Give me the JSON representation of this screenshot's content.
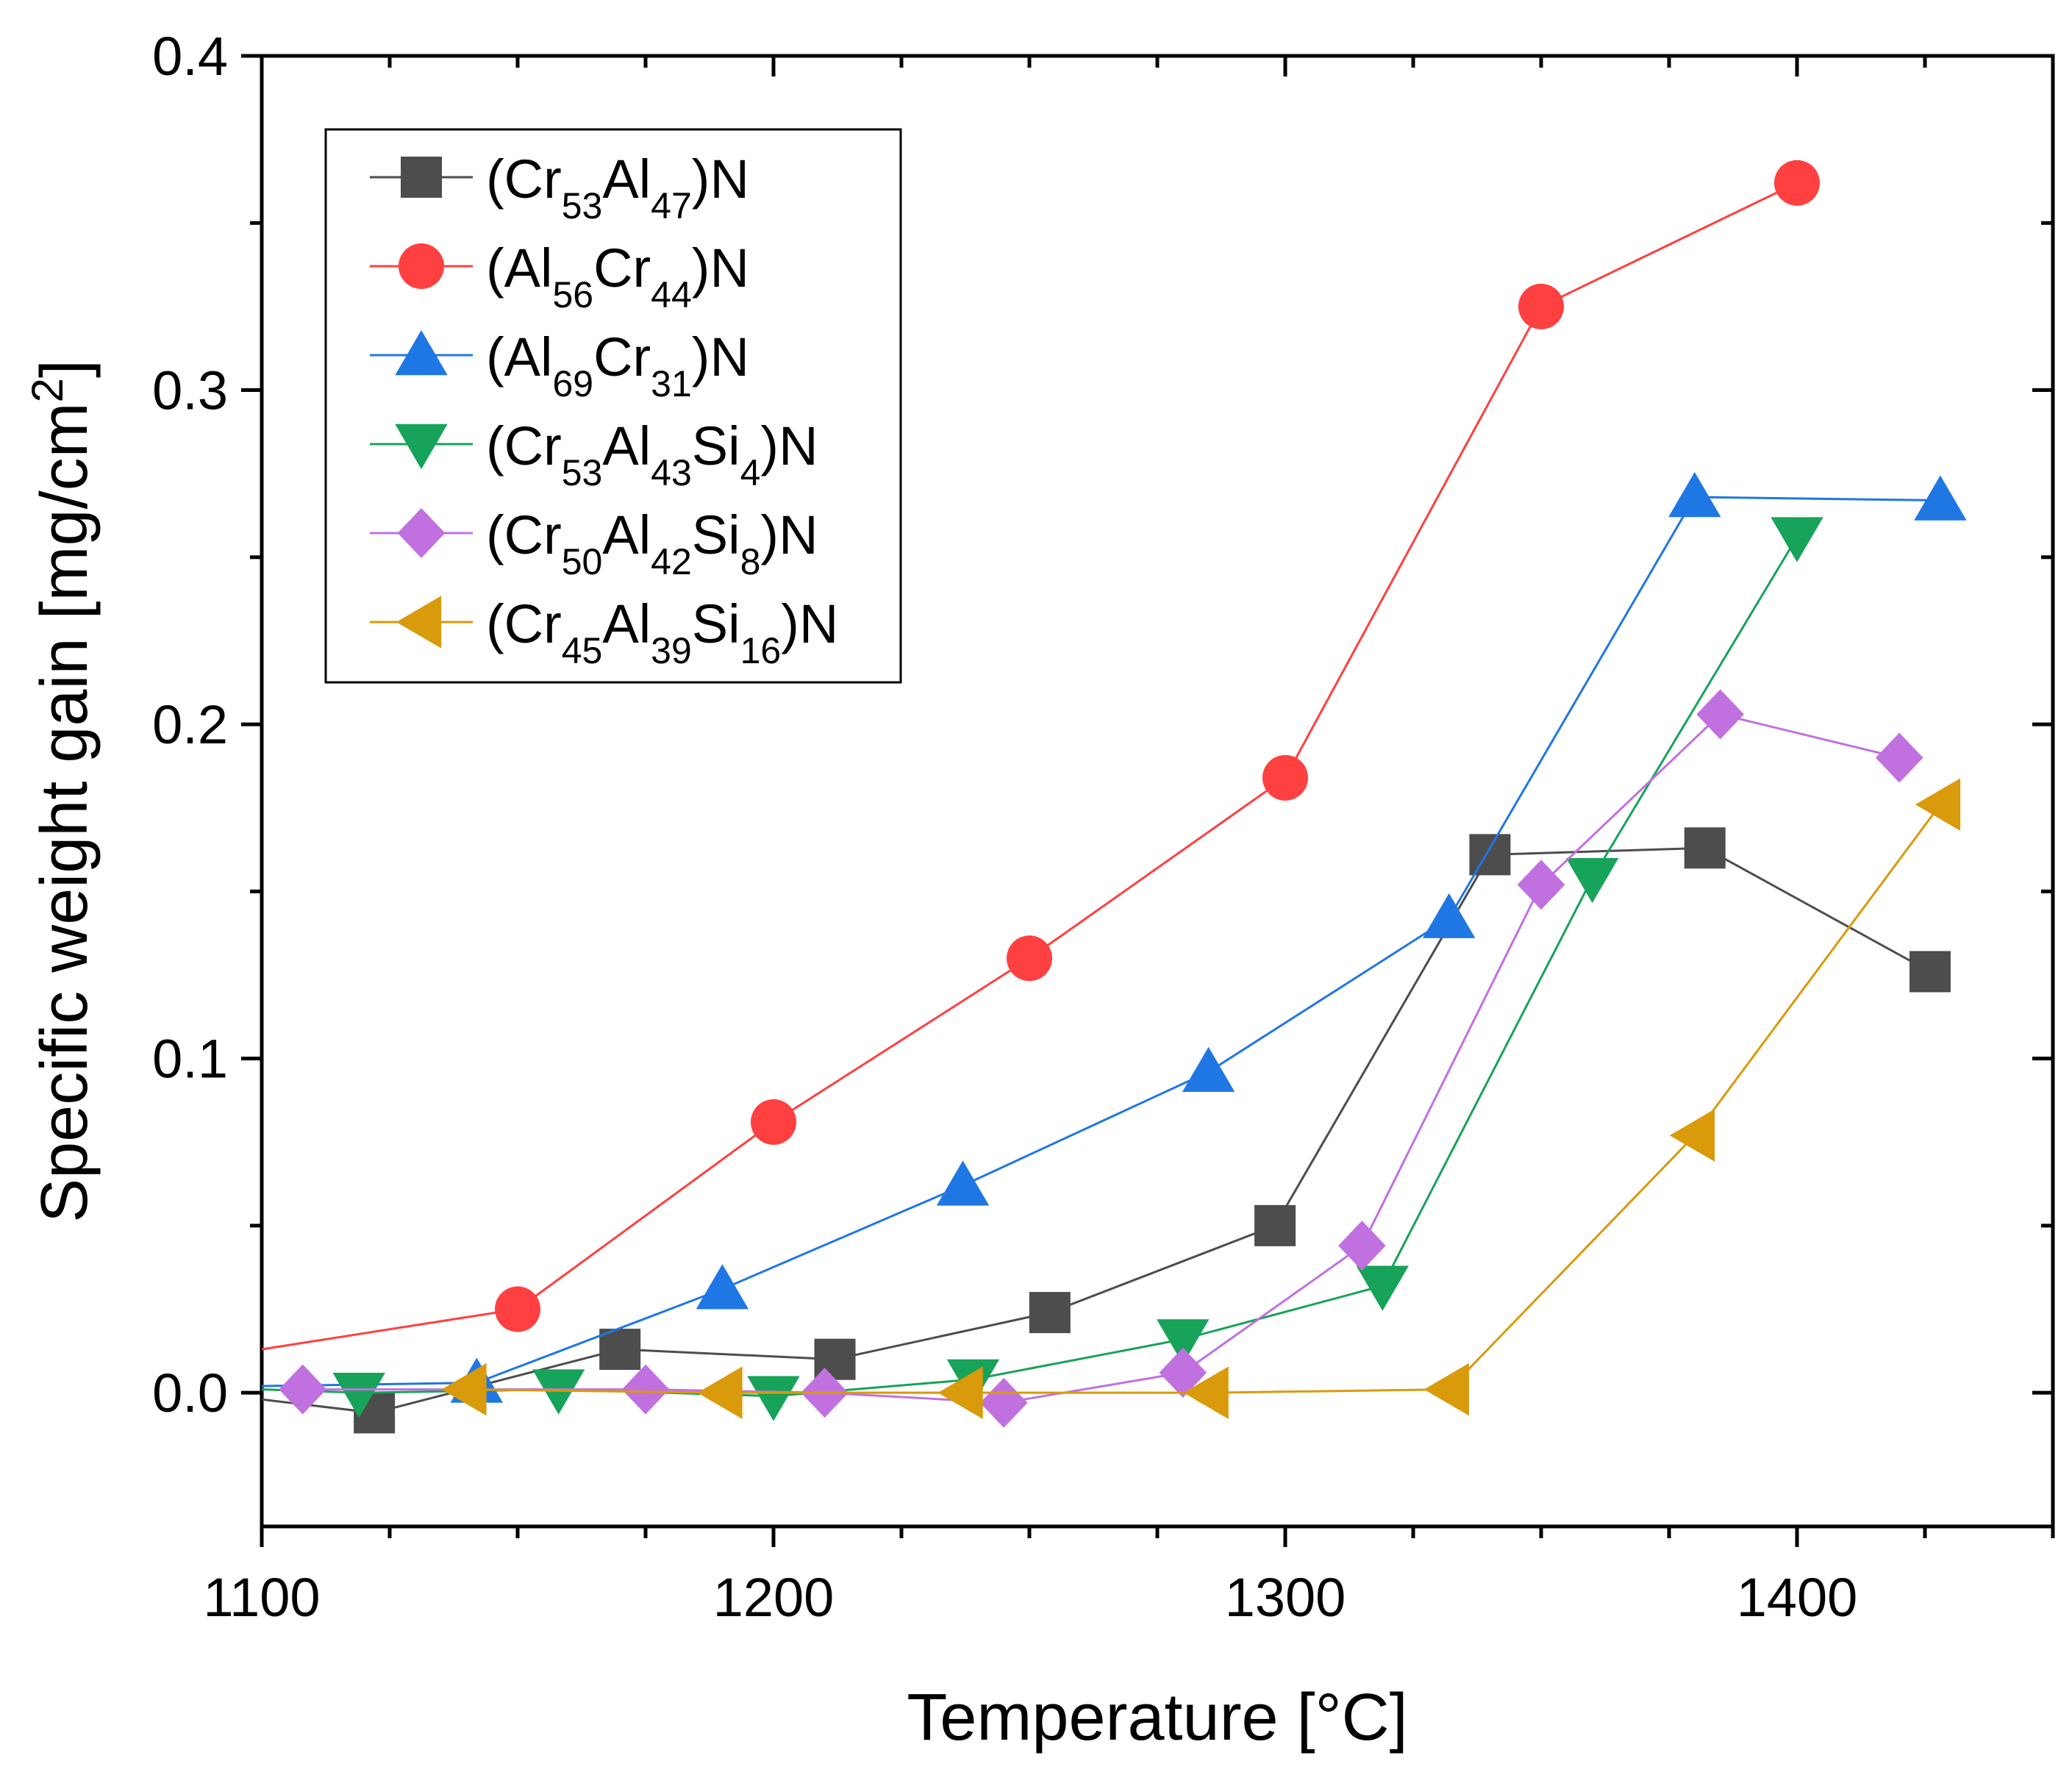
{
  "chart_data": {
    "type": "line",
    "title": "",
    "xlabel": "Temperature [°C]",
    "ylabel": "Specific weight gain [mg/cm²]",
    "ylabel_parts": {
      "base": "Specific weight gain [mg/cm",
      "sup": "2",
      "end": "]"
    },
    "xlim": [
      1100,
      1450
    ],
    "ylim": [
      -0.04,
      0.4
    ],
    "x_major_ticks": [
      1100,
      1200,
      1300,
      1400
    ],
    "x_tick_labels": [
      "1100",
      "1200",
      "1300",
      "1400"
    ],
    "x_minor_ticks": [
      1125,
      1150,
      1175,
      1225,
      1250,
      1275,
      1325,
      1350,
      1375,
      1425,
      1450
    ],
    "y_major_ticks": [
      0.0,
      0.1,
      0.2,
      0.3,
      0.4
    ],
    "y_tick_labels": [
      "0.0",
      "0.1",
      "0.2",
      "0.3",
      "0.4"
    ],
    "y_minor_ticks": [
      0.05,
      0.15,
      0.25,
      0.35
    ],
    "grid": false,
    "legend_position": "top-left",
    "series": [
      {
        "name": "(Cr53Al47)N",
        "label_parts": [
          [
            "(Cr",
            ""
          ],
          [
            "53",
            "sub"
          ],
          [
            "Al",
            ""
          ],
          [
            "47",
            "sub"
          ],
          [
            ")N",
            ""
          ]
        ],
        "color": "#4d4d4d",
        "marker": "square",
        "x": [
          1100,
          1122,
          1170,
          1212,
          1254,
          1298,
          1340,
          1382,
          1426
        ],
        "y": [
          -0.002,
          -0.006,
          0.013,
          0.01,
          0.024,
          0.05,
          0.161,
          0.163,
          0.126
        ],
        "marker_mask": [
          false,
          true,
          true,
          true,
          true,
          true,
          true,
          true,
          true
        ]
      },
      {
        "name": "(Al56Cr44)N",
        "label_parts": [
          [
            "(Al",
            ""
          ],
          [
            "56",
            "sub"
          ],
          [
            "Cr",
            ""
          ],
          [
            "44",
            "sub"
          ],
          [
            ")N",
            ""
          ]
        ],
        "color": "#ff4040",
        "marker": "circle",
        "x": [
          1100,
          1150,
          1200,
          1250,
          1300,
          1350,
          1400
        ],
        "y": [
          0.013,
          0.025,
          0.081,
          0.13,
          0.184,
          0.325,
          0.362
        ],
        "marker_mask": [
          false,
          true,
          true,
          true,
          true,
          true,
          true
        ]
      },
      {
        "name": "(Al69Cr31)N",
        "label_parts": [
          [
            "(Al",
            ""
          ],
          [
            "69",
            "sub"
          ],
          [
            "Cr",
            ""
          ],
          [
            "31",
            "sub"
          ],
          [
            ")N",
            ""
          ]
        ],
        "color": "#1f77e4",
        "marker": "triangle-up",
        "x": [
          1100,
          1142,
          1190,
          1237,
          1285,
          1332,
          1380,
          1428
        ],
        "y": [
          0.002,
          0.003,
          0.031,
          0.062,
          0.096,
          0.142,
          0.268,
          0.267
        ],
        "marker_mask": [
          false,
          true,
          true,
          true,
          true,
          true,
          true,
          true
        ]
      },
      {
        "name": "(Cr53Al43Si4)N",
        "label_parts": [
          [
            "(Cr",
            ""
          ],
          [
            "53",
            "sub"
          ],
          [
            "Al",
            ""
          ],
          [
            "43",
            "sub"
          ],
          [
            "Si",
            ""
          ],
          [
            "4",
            "sub"
          ],
          [
            ")N",
            ""
          ]
        ],
        "color": "#17a35a",
        "marker": "triangle-down",
        "x": [
          1100,
          1119,
          1158,
          1200,
          1239,
          1280,
          1319,
          1360,
          1400
        ],
        "y": [
          0.001,
          0.0,
          0.001,
          -0.001,
          0.004,
          0.016,
          0.032,
          0.154,
          0.256
        ],
        "marker_mask": [
          false,
          true,
          true,
          true,
          true,
          true,
          true,
          true,
          true
        ]
      },
      {
        "name": "(Cr50Al42Si8)N",
        "label_parts": [
          [
            "(Cr",
            ""
          ],
          [
            "50",
            "sub"
          ],
          [
            "Al",
            ""
          ],
          [
            "42",
            "sub"
          ],
          [
            "Si",
            ""
          ],
          [
            "8",
            "sub"
          ],
          [
            ")N",
            ""
          ]
        ],
        "color": "#c170e0",
        "marker": "diamond",
        "x": [
          1108,
          1175,
          1210,
          1245,
          1280,
          1315,
          1350,
          1385,
          1420
        ],
        "y": [
          0.001,
          0.001,
          0.0,
          -0.003,
          0.006,
          0.044,
          0.152,
          0.203,
          0.19
        ],
        "marker_mask": [
          true,
          true,
          true,
          true,
          true,
          true,
          true,
          true,
          true
        ]
      },
      {
        "name": "(Cr45Al39Si16)N",
        "label_parts": [
          [
            "(Cr",
            ""
          ],
          [
            "45",
            "sub"
          ],
          [
            "Al",
            ""
          ],
          [
            "39",
            "sub"
          ],
          [
            "Si",
            ""
          ],
          [
            "16",
            "sub"
          ],
          [
            ")N",
            ""
          ]
        ],
        "color": "#d99a0b",
        "marker": "triangle-left",
        "x": [
          1140,
          1190,
          1237,
          1285,
          1332,
          1380,
          1428
        ],
        "y": [
          0.001,
          0.0,
          0.0,
          0.0,
          0.001,
          0.077,
          0.176
        ],
        "marker_mask": [
          true,
          true,
          true,
          true,
          true,
          true,
          true
        ]
      }
    ]
  }
}
